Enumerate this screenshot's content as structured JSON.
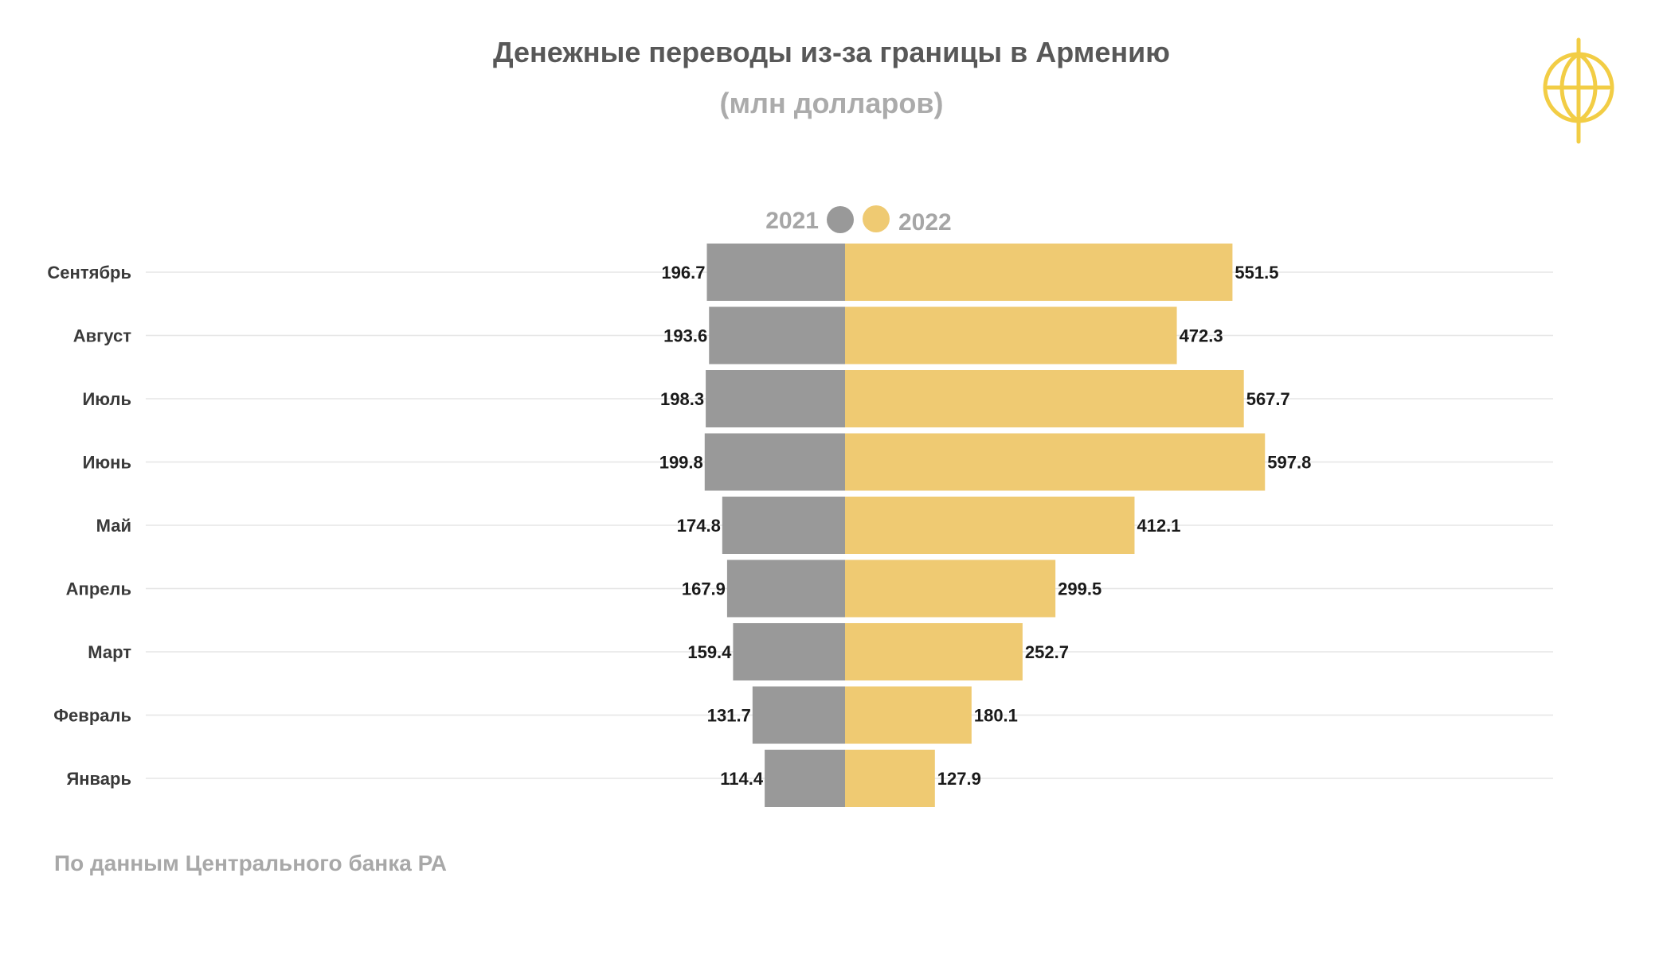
{
  "title": "Денежные переводы из-за границы в Армению",
  "subtitle": "(млн долларов)",
  "source": "По данным Центрального банка РА",
  "colors": {
    "series_2021": "#999999",
    "series_2022": "#efca72",
    "logo": "#f2cd45",
    "gridline": "#e6e6e6"
  },
  "chart_data": {
    "type": "bar",
    "orientation": "horizontal-diverging",
    "title": "Денежные переводы из-за границы в Армению",
    "subtitle": "(млн долларов)",
    "categories": [
      "Сентябрь",
      "Август",
      "Июль",
      "Июнь",
      "Май",
      "Апрель",
      "Март",
      "Февраль",
      "Январь"
    ],
    "series": [
      {
        "name": "2021",
        "side": "left",
        "color": "#999999",
        "values": [
          196.7,
          193.6,
          198.3,
          199.8,
          174.8,
          167.9,
          159.4,
          131.7,
          114.4
        ],
        "labels": [
          "196.7",
          "193.6",
          "198.3",
          "199.8",
          "174.8",
          "167.9",
          "159.4",
          "131.7",
          "114.4"
        ]
      },
      {
        "name": "2022",
        "side": "right",
        "color": "#efca72",
        "values": [
          551.5,
          472.3,
          567.7,
          597.8,
          412.1,
          299.5,
          252.7,
          180.1,
          127.9
        ],
        "labels": [
          "551.5",
          "472.3",
          "567.7",
          "597.8",
          "412.1",
          "299.5",
          "252.7",
          "180.1",
          "127.9"
        ]
      }
    ],
    "xlabel": "",
    "ylabel": "",
    "legend_position": "top-center",
    "grid": true
  }
}
